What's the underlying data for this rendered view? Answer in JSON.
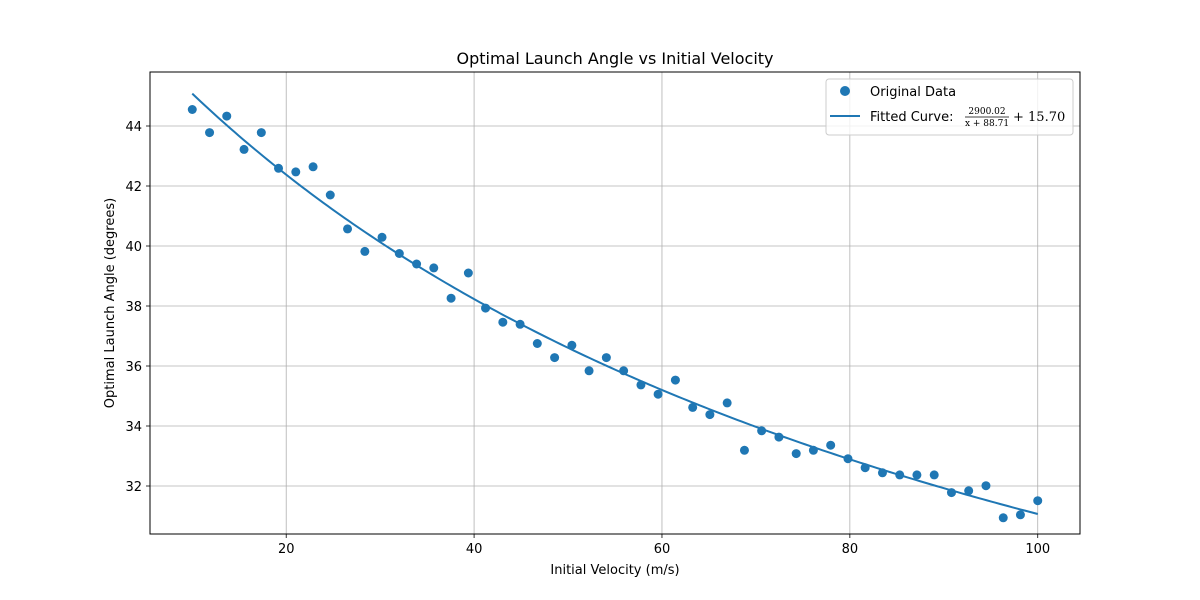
{
  "chart_data": {
    "type": "scatter",
    "title": "Optimal Launch Angle vs Initial Velocity",
    "xlabel": "Initial Velocity (m/s)",
    "ylabel": "Optimal Launch Angle (degrees)",
    "xlim": [
      5.5,
      104.5
    ],
    "ylim": [
      30.4,
      45.8
    ],
    "xticks": [
      20,
      40,
      60,
      80,
      100
    ],
    "yticks": [
      32,
      34,
      36,
      38,
      40,
      42,
      44
    ],
    "grid": true,
    "legend_position": "top-right",
    "colors": {
      "series": "#1f77b4",
      "grid": "#b0b0b0"
    },
    "series": [
      {
        "name": "Original Data",
        "kind": "scatter",
        "x": [
          10.0,
          11.84,
          13.67,
          15.51,
          17.35,
          19.18,
          21.02,
          22.86,
          24.69,
          26.53,
          28.37,
          30.2,
          32.04,
          33.88,
          35.71,
          37.55,
          39.39,
          41.22,
          43.06,
          44.9,
          46.73,
          48.57,
          50.41,
          52.24,
          54.08,
          55.92,
          57.76,
          59.59,
          61.43,
          63.27,
          65.1,
          66.94,
          68.78,
          70.61,
          72.45,
          74.29,
          76.12,
          77.96,
          79.8,
          81.63,
          83.47,
          85.31,
          87.14,
          88.98,
          90.82,
          92.65,
          94.49,
          96.33,
          98.16,
          100.0
        ],
        "y": [
          44.55,
          43.78,
          44.33,
          43.22,
          43.78,
          42.59,
          42.47,
          42.64,
          41.7,
          40.57,
          39.82,
          40.29,
          39.75,
          39.4,
          39.27,
          38.26,
          39.1,
          37.93,
          37.46,
          37.39,
          36.75,
          36.28,
          36.69,
          35.84,
          36.28,
          35.84,
          35.37,
          35.06,
          35.53,
          34.62,
          34.38,
          34.77,
          33.19,
          33.84,
          33.63,
          33.08,
          33.19,
          33.36,
          32.91,
          32.61,
          32.44,
          32.37,
          32.37,
          32.37,
          31.78,
          31.84,
          32.01,
          30.94,
          31.04,
          31.51
        ]
      },
      {
        "name": "Fitted Curve:",
        "kind": "line",
        "a": 2900.02,
        "b": 88.71,
        "c": 15.7,
        "x_range": [
          10,
          100
        ]
      }
    ],
    "legend_formula": {
      "numerator": "2900.02",
      "denominator": "x + 88.71",
      "tail": "+ 15.70"
    }
  }
}
